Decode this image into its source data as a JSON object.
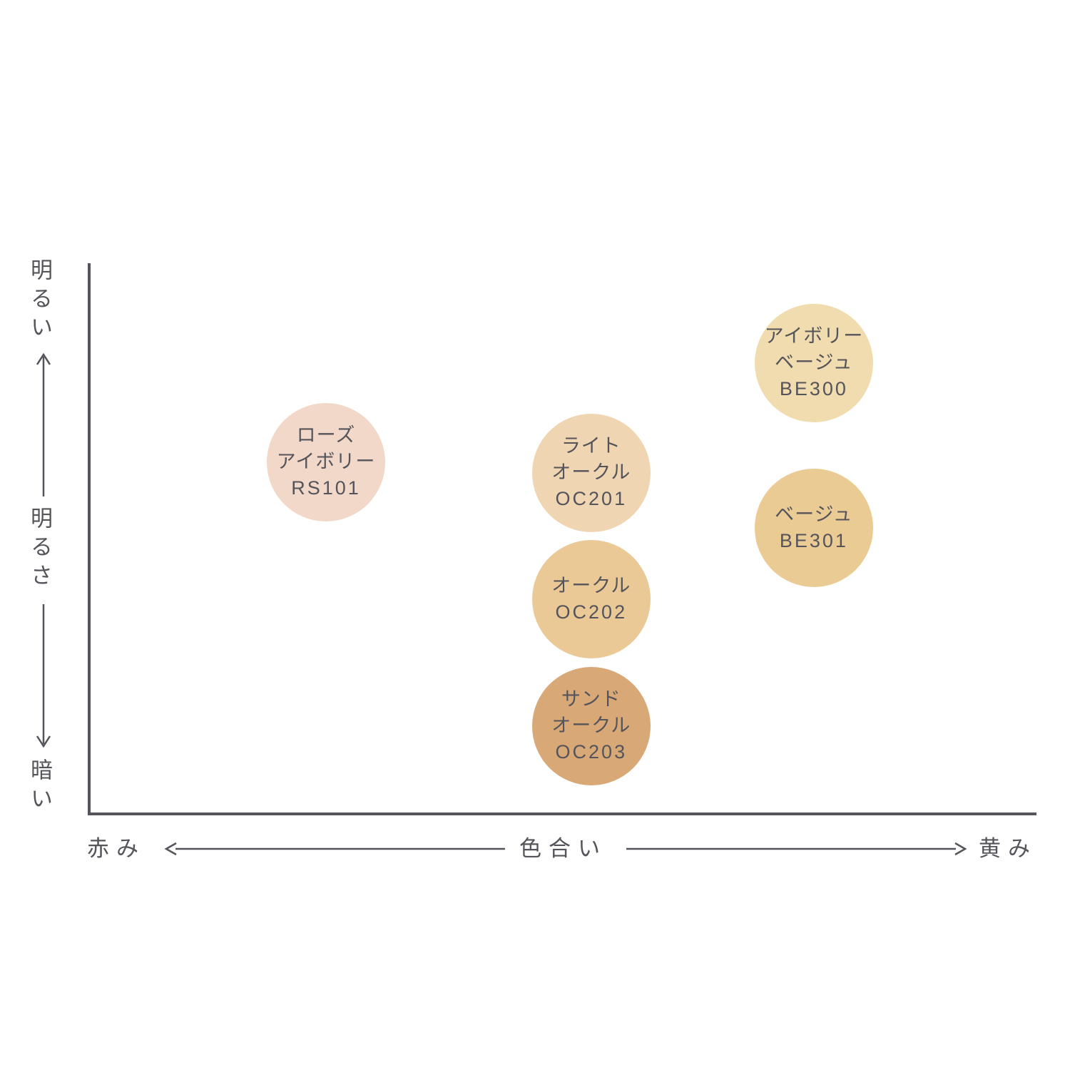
{
  "colors": {
    "axis": "#54545a",
    "label_text": "#54545a",
    "background": "#ffffff"
  },
  "axes": {
    "y": {
      "top_label": "明るい",
      "mid_label": "明るさ",
      "bottom_label": "暗い"
    },
    "x": {
      "left_label": "赤み",
      "mid_label": "色合い",
      "right_label": "黄み"
    }
  },
  "chart_data": {
    "type": "scatter",
    "title": "",
    "xlabel": "色合い",
    "ylabel": "明るさ",
    "x_axis": {
      "label": "色合い",
      "min_label": "赤み",
      "max_label": "黄み",
      "range": [
        0,
        1
      ]
    },
    "y_axis": {
      "label": "明るさ",
      "min_label": "暗い",
      "max_label": "明るい",
      "range": [
        0,
        1
      ]
    },
    "legend": "none",
    "grid": false,
    "points": [
      {
        "name_lines": [
          "ローズ",
          "アイボリー"
        ],
        "code": "RS101",
        "hue": 0.25,
        "brightness": 0.64,
        "color": "#f2d8c9"
      },
      {
        "name_lines": [
          "ライト",
          "オークル"
        ],
        "code": "OC201",
        "hue": 0.53,
        "brightness": 0.62,
        "color": "#f0d5b2"
      },
      {
        "name_lines": [
          "オークル"
        ],
        "code": "OC202",
        "hue": 0.53,
        "brightness": 0.39,
        "color": "#eac997"
      },
      {
        "name_lines": [
          "サンド",
          "オークル"
        ],
        "code": "OC203",
        "hue": 0.53,
        "brightness": 0.16,
        "color": "#d8a877"
      },
      {
        "name_lines": [
          "アイボリー",
          "ベージュ"
        ],
        "code": "BE300",
        "hue": 0.765,
        "brightness": 0.82,
        "color": "#f0dcae"
      },
      {
        "name_lines": [
          "ベージュ"
        ],
        "code": "BE301",
        "hue": 0.765,
        "brightness": 0.52,
        "color": "#ebcb94"
      }
    ]
  }
}
